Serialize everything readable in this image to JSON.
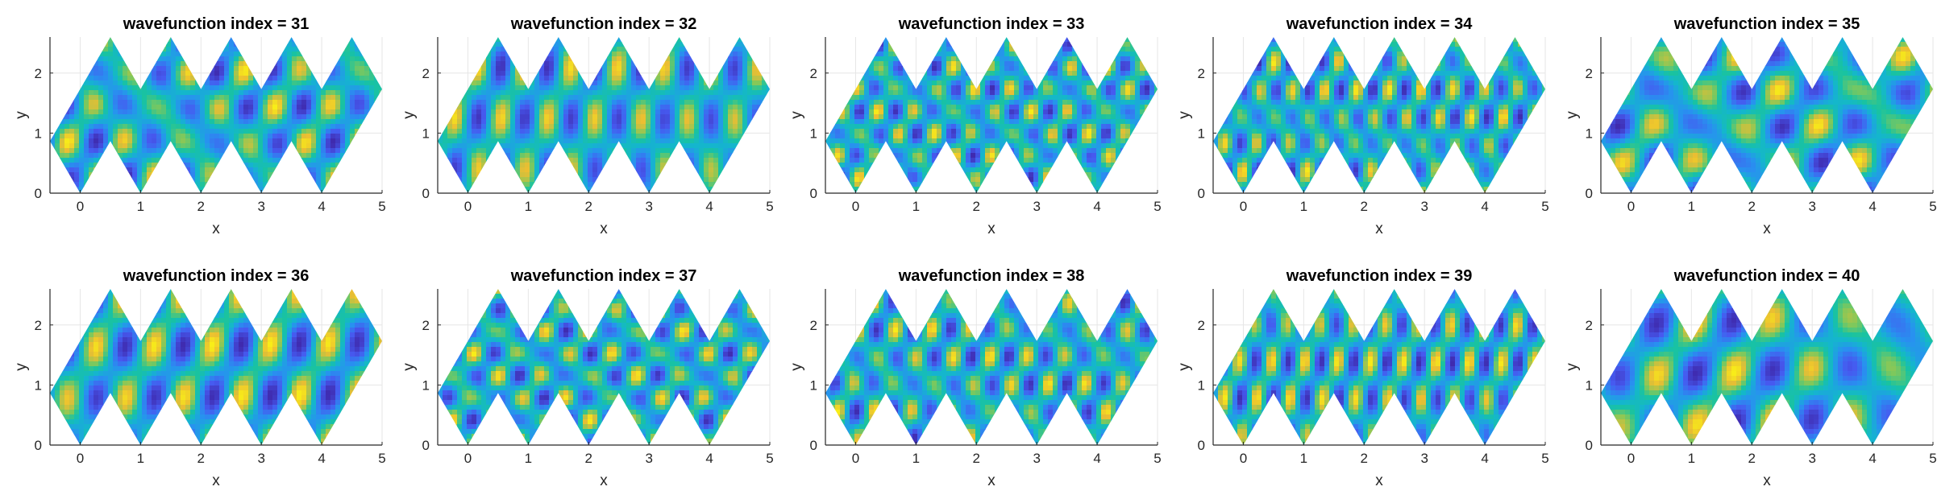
{
  "figure": {
    "colormap": "parula",
    "axis_color": "#262626",
    "grid_color": "#e6e6e6",
    "grid": true
  },
  "chart_data": [
    {
      "type": "heatmap",
      "title": "wavefunction index = 31",
      "xlabel": "x",
      "ylabel": "y",
      "xlim": [
        -0.5,
        5
      ],
      "ylim": [
        0,
        2.6
      ],
      "xticks": [
        "0",
        "1",
        "2",
        "3",
        "4",
        "5"
      ],
      "yticks": [
        "0",
        "1",
        "2"
      ],
      "domain": "zigzag strip of rhombic cells",
      "row": 1,
      "col": 1
    },
    {
      "type": "heatmap",
      "title": "wavefunction index = 32",
      "xlabel": "x",
      "ylabel": "y",
      "xlim": [
        -0.5,
        5
      ],
      "ylim": [
        0,
        2.6
      ],
      "xticks": [
        "0",
        "1",
        "2",
        "3",
        "4",
        "5"
      ],
      "yticks": [
        "0",
        "1",
        "2"
      ],
      "domain": "zigzag strip of rhombic cells",
      "row": 1,
      "col": 2
    },
    {
      "type": "heatmap",
      "title": "wavefunction index = 33",
      "xlabel": "x",
      "ylabel": "y",
      "xlim": [
        -0.5,
        5
      ],
      "ylim": [
        0,
        2.6
      ],
      "xticks": [
        "0",
        "1",
        "2",
        "3",
        "4",
        "5"
      ],
      "yticks": [
        "0",
        "1",
        "2"
      ],
      "domain": "zigzag strip of rhombic cells",
      "row": 1,
      "col": 3
    },
    {
      "type": "heatmap",
      "title": "wavefunction index = 34",
      "xlabel": "x",
      "ylabel": "y",
      "xlim": [
        -0.5,
        5
      ],
      "ylim": [
        0,
        2.6
      ],
      "xticks": [
        "0",
        "1",
        "2",
        "3",
        "4",
        "5"
      ],
      "yticks": [
        "0",
        "1",
        "2"
      ],
      "domain": "zigzag strip of rhombic cells",
      "row": 1,
      "col": 4
    },
    {
      "type": "heatmap",
      "title": "wavefunction index = 35",
      "xlabel": "x",
      "ylabel": "y",
      "xlim": [
        -0.5,
        5
      ],
      "ylim": [
        0,
        2.6
      ],
      "xticks": [
        "0",
        "1",
        "2",
        "3",
        "4",
        "5"
      ],
      "yticks": [
        "0",
        "1",
        "2"
      ],
      "domain": "zigzag strip of rhombic cells",
      "row": 1,
      "col": 5
    },
    {
      "type": "heatmap",
      "title": "wavefunction index = 36",
      "xlabel": "x",
      "ylabel": "y",
      "xlim": [
        -0.5,
        5
      ],
      "ylim": [
        0,
        2.6
      ],
      "xticks": [
        "0",
        "1",
        "2",
        "3",
        "4",
        "5"
      ],
      "yticks": [
        "0",
        "1",
        "2"
      ],
      "domain": "zigzag strip of rhombic cells",
      "row": 2,
      "col": 1
    },
    {
      "type": "heatmap",
      "title": "wavefunction index = 37",
      "xlabel": "x",
      "ylabel": "y",
      "xlim": [
        -0.5,
        5
      ],
      "ylim": [
        0,
        2.6
      ],
      "xticks": [
        "0",
        "1",
        "2",
        "3",
        "4",
        "5"
      ],
      "yticks": [
        "0",
        "1",
        "2"
      ],
      "domain": "zigzag strip of rhombic cells",
      "row": 2,
      "col": 2
    },
    {
      "type": "heatmap",
      "title": "wavefunction index = 38",
      "xlabel": "x",
      "ylabel": "y",
      "xlim": [
        -0.5,
        5
      ],
      "ylim": [
        0,
        2.6
      ],
      "xticks": [
        "0",
        "1",
        "2",
        "3",
        "4",
        "5"
      ],
      "yticks": [
        "0",
        "1",
        "2"
      ],
      "domain": "zigzag strip of rhombic cells",
      "row": 2,
      "col": 3
    },
    {
      "type": "heatmap",
      "title": "wavefunction index = 39",
      "xlabel": "x",
      "ylabel": "y",
      "xlim": [
        -0.5,
        5
      ],
      "ylim": [
        0,
        2.6
      ],
      "xticks": [
        "0",
        "1",
        "2",
        "3",
        "4",
        "5"
      ],
      "yticks": [
        "0",
        "1",
        "2"
      ],
      "domain": "zigzag strip of rhombic cells",
      "row": 2,
      "col": 4
    },
    {
      "type": "heatmap",
      "title": "wavefunction index = 40",
      "xlabel": "x",
      "ylabel": "y",
      "xlim": [
        -0.5,
        5
      ],
      "ylim": [
        0,
        2.6
      ],
      "xticks": [
        "0",
        "1",
        "2",
        "3",
        "4",
        "5"
      ],
      "yticks": [
        "0",
        "1",
        "2"
      ],
      "domain": "zigzag strip of rhombic cells",
      "row": 2,
      "col": 5
    }
  ]
}
